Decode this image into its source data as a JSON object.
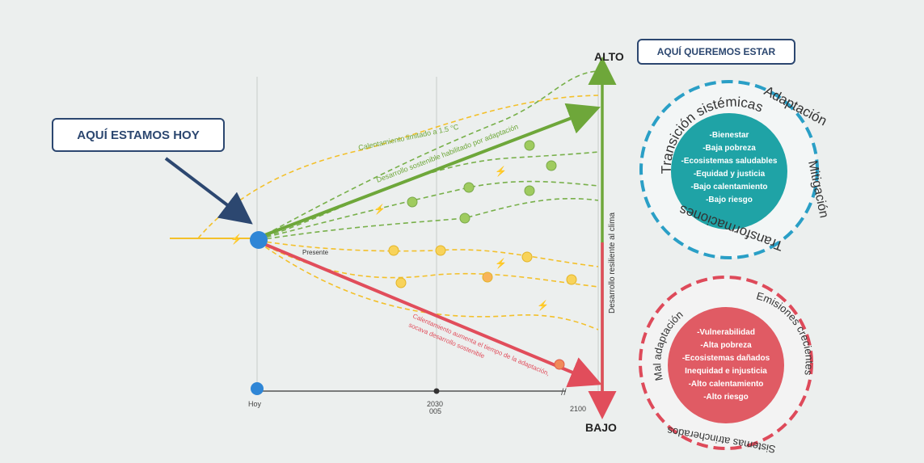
{
  "callouts": {
    "aqui_estamos_hoy": "AQUÍ ESTAMOS HOY",
    "aqui_queremos_estar": "AQUÍ QUEREMOS ESTAR"
  },
  "axis": {
    "alto": "ALTO",
    "bajo": "BAJO",
    "vertical_label": "Desarrollo resiliente al clima",
    "x_hoy": "Hoy",
    "x_mid": "2030",
    "x_mid_sub": "005",
    "x_end": "2100"
  },
  "paths": {
    "present": "Presente",
    "limited": "Calentamiento limitado a 1.5 °C",
    "sustainable": "Desarrollo sostenible habilitado por adaptación",
    "red_line1": "Calentamiento aumenta el tiempo de la adaptación,",
    "red_line2": "socava desarrollo sostenible"
  },
  "good_circle": {
    "arc_left": "Transición sistémicas",
    "arc_right": "Adaptación",
    "arc_side": "Mitigación",
    "arc_bottom": "Transformaciones",
    "items": [
      "-Bienestar",
      "-Baja pobreza",
      "-Ecosistemas saludables",
      "-Equidad y justicia",
      "-Bajo calentamiento",
      "-Bajo riesgo"
    ],
    "fill_color": "#1fa3a6",
    "ring_color": "#2a9fc6"
  },
  "bad_circle": {
    "arc_left": "Mal adaptación",
    "arc_right": "Emisiones crecientes",
    "arc_bottom": "Sistemas atrincherados",
    "items": [
      "-Vulnerabilidad",
      "-Alta pobreza",
      "-Ecosistemas dañados",
      "Inequidad e injusticia",
      "-Alto calentamiento",
      "-Alto riesgo"
    ],
    "fill_color": "#e05b64",
    "ring_color": "#de4a5a"
  },
  "colors": {
    "green": "#6ea73a",
    "dashed_green": "#78b04a",
    "yellow": "#f3c02a",
    "red": "#e14d5b",
    "blue": "#2f86d6",
    "navy": "#2c4770"
  }
}
